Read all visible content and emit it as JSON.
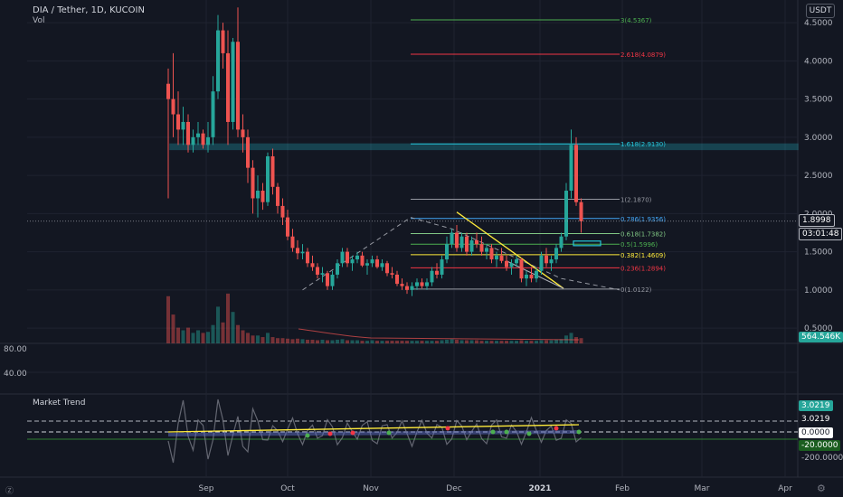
{
  "header": {
    "symbol_line": "DIA / Tether, 1D, KUCOIN",
    "volume_label": "Vol",
    "currency": "USDT"
  },
  "indicator": {
    "name": "Market Trend"
  },
  "price_axis": {
    "ticks": [
      "4.5000",
      "4.0000",
      "3.5000",
      "3.0000",
      "2.5000",
      "2.0000",
      "1.5000",
      "1.0000",
      "0.5000"
    ]
  },
  "osc_axis": {
    "ticks": [
      "80.00",
      "40.00"
    ]
  },
  "mt_axis": {
    "ticks": [
      "-200.0000"
    ]
  },
  "time_axis": {
    "ticks": [
      "Sep",
      "Oct",
      "Nov",
      "Dec",
      "2021",
      "Feb",
      "Mar",
      "Apr"
    ]
  },
  "tags": {
    "last_price": "1.8998",
    "countdown": "03:01:48",
    "volume": "564.546K",
    "mt_top": "3.0219",
    "mt_upper": "3.0219",
    "mt_zero": "0.0000",
    "mt_lower": "-20.0000"
  },
  "fib_levels": [
    {
      "label": "3(4.5367)",
      "price": 4.5367,
      "color": "#4caf50"
    },
    {
      "label": "2.618(4.0879)",
      "price": 4.0879,
      "color": "#f23645"
    },
    {
      "label": "1.618(2.9130)",
      "price": 2.913,
      "color": "#26c6da"
    },
    {
      "label": "1(2.1870)",
      "price": 2.187,
      "color": "#9598a1"
    },
    {
      "label": "0.786(1.9356)",
      "price": 1.9356,
      "color": "#42a5f5"
    },
    {
      "label": "0.618(1.7382)",
      "price": 1.7382,
      "color": "#81c784"
    },
    {
      "label": "0.5(1.5996)",
      "price": 1.5996,
      "color": "#4caf50"
    },
    {
      "label": "0.382(1.4609)",
      "price": 1.4609,
      "color": "#ffeb3b"
    },
    {
      "label": "0.236(1.2894)",
      "price": 1.2894,
      "color": "#f23645"
    },
    {
      "label": "0(1.0122)",
      "price": 1.0122,
      "color": "#9598a1"
    }
  ],
  "colors": {
    "up": "#26a69a",
    "down": "#ef5350",
    "background": "#131722",
    "grid": "#1f2330",
    "resistance": "#26c6da"
  },
  "icons": {
    "bottom_left": "z-icon",
    "bottom_right": "gear-icon"
  },
  "chart_data": {
    "type": "candlestick",
    "x_ticks": [
      "Sep",
      "Oct",
      "Nov",
      "Dec",
      "2021",
      "Feb",
      "Mar",
      "Apr"
    ],
    "ylim": [
      0.3,
      4.75
    ],
    "price_ticks": [
      4.5,
      4.0,
      3.5,
      3.0,
      2.5,
      2.0,
      1.5,
      1.0,
      0.5
    ],
    "resistance_zone": [
      2.84,
      2.91
    ],
    "last_price": 1.8998,
    "fib_levels": [
      4.5367,
      4.0879,
      2.913,
      2.187,
      1.9356,
      1.7382,
      1.5996,
      1.4609,
      1.2894,
      1.0122
    ],
    "x_range": [
      0,
      180
    ],
    "candles": [
      [
        0,
        3.7,
        3.9,
        2.2,
        3.5
      ],
      [
        1,
        3.5,
        4.1,
        3.0,
        3.3
      ],
      [
        2,
        3.3,
        3.6,
        2.9,
        3.1
      ],
      [
        3,
        3.1,
        3.4,
        2.9,
        3.2
      ],
      [
        4,
        3.2,
        3.3,
        2.8,
        2.9
      ],
      [
        5,
        2.9,
        3.1,
        2.8,
        3.0
      ],
      [
        6,
        3.0,
        3.2,
        2.9,
        3.05
      ],
      [
        7,
        3.05,
        3.1,
        2.85,
        2.9
      ],
      [
        8,
        2.9,
        3.2,
        2.8,
        3.0
      ],
      [
        9,
        3.0,
        3.8,
        2.9,
        3.6
      ],
      [
        10,
        3.6,
        4.6,
        3.5,
        4.4
      ],
      [
        11,
        4.4,
        4.5,
        3.9,
        4.1
      ],
      [
        12,
        4.1,
        4.4,
        2.9,
        3.2
      ],
      [
        13,
        3.2,
        4.3,
        3.1,
        4.25
      ],
      [
        14,
        4.25,
        4.7,
        3.0,
        3.1
      ],
      [
        15,
        3.1,
        3.3,
        2.8,
        3.0
      ],
      [
        16,
        3.0,
        3.1,
        2.4,
        2.6
      ],
      [
        17,
        2.6,
        2.7,
        2.0,
        2.2
      ],
      [
        18,
        2.2,
        2.5,
        1.95,
        2.3
      ],
      [
        19,
        2.3,
        2.4,
        2.05,
        2.15
      ],
      [
        20,
        2.15,
        2.8,
        2.1,
        2.75
      ],
      [
        21,
        2.75,
        2.85,
        2.25,
        2.35
      ],
      [
        22,
        2.35,
        2.4,
        2.0,
        2.1
      ],
      [
        23,
        2.1,
        2.2,
        1.85,
        1.95
      ],
      [
        24,
        1.95,
        2.05,
        1.65,
        1.7
      ],
      [
        25,
        1.7,
        1.8,
        1.5,
        1.55
      ],
      [
        26,
        1.55,
        1.65,
        1.4,
        1.48
      ],
      [
        27,
        1.48,
        1.6,
        1.4,
        1.5
      ],
      [
        28,
        1.5,
        1.55,
        1.3,
        1.35
      ],
      [
        29,
        1.35,
        1.45,
        1.25,
        1.3
      ],
      [
        30,
        1.3,
        1.35,
        1.15,
        1.2
      ],
      [
        31,
        1.2,
        1.3,
        1.1,
        1.22
      ],
      [
        32,
        1.22,
        1.25,
        1.0,
        1.05
      ],
      [
        33,
        1.05,
        1.25,
        1.0,
        1.2
      ],
      [
        34,
        1.2,
        1.4,
        1.15,
        1.35
      ],
      [
        35,
        1.35,
        1.55,
        1.3,
        1.5
      ],
      [
        36,
        1.5,
        1.55,
        1.3,
        1.35
      ],
      [
        37,
        1.35,
        1.45,
        1.25,
        1.4
      ],
      [
        38,
        1.4,
        1.5,
        1.35,
        1.45
      ],
      [
        39,
        1.45,
        1.5,
        1.3,
        1.32
      ],
      [
        40,
        1.32,
        1.4,
        1.2,
        1.35
      ],
      [
        41,
        1.35,
        1.45,
        1.3,
        1.4
      ],
      [
        42,
        1.4,
        1.45,
        1.28,
        1.3
      ],
      [
        43,
        1.3,
        1.4,
        1.25,
        1.35
      ],
      [
        44,
        1.35,
        1.38,
        1.18,
        1.22
      ],
      [
        45,
        1.22,
        1.3,
        1.15,
        1.2
      ],
      [
        46,
        1.2,
        1.25,
        1.05,
        1.08
      ],
      [
        47,
        1.08,
        1.15,
        1.0,
        1.05
      ],
      [
        48,
        1.05,
        1.1,
        0.95,
        1.0
      ],
      [
        49,
        1.0,
        1.1,
        0.92,
        1.05
      ],
      [
        50,
        1.05,
        1.15,
        1.0,
        1.1
      ],
      [
        51,
        1.1,
        1.15,
        1.02,
        1.05
      ],
      [
        52,
        1.05,
        1.15,
        1.0,
        1.1
      ],
      [
        53,
        1.1,
        1.3,
        1.05,
        1.25
      ],
      [
        54,
        1.25,
        1.35,
        1.15,
        1.2
      ],
      [
        55,
        1.2,
        1.45,
        1.15,
        1.4
      ],
      [
        56,
        1.4,
        1.7,
        1.35,
        1.6
      ],
      [
        57,
        1.6,
        1.8,
        1.55,
        1.75
      ],
      [
        58,
        1.75,
        1.85,
        1.5,
        1.55
      ],
      [
        59,
        1.55,
        1.75,
        1.5,
        1.7
      ],
      [
        60,
        1.7,
        1.75,
        1.45,
        1.5
      ],
      [
        61,
        1.5,
        1.7,
        1.45,
        1.65
      ],
      [
        62,
        1.65,
        1.75,
        1.55,
        1.6
      ],
      [
        63,
        1.6,
        1.7,
        1.45,
        1.5
      ],
      [
        64,
        1.5,
        1.6,
        1.4,
        1.55
      ],
      [
        65,
        1.55,
        1.6,
        1.35,
        1.4
      ],
      [
        66,
        1.4,
        1.5,
        1.3,
        1.45
      ],
      [
        67,
        1.45,
        1.55,
        1.35,
        1.38
      ],
      [
        68,
        1.38,
        1.45,
        1.25,
        1.3
      ],
      [
        69,
        1.3,
        1.4,
        1.2,
        1.35
      ],
      [
        70,
        1.35,
        1.45,
        1.3,
        1.4
      ],
      [
        71,
        1.4,
        1.42,
        1.1,
        1.15
      ],
      [
        72,
        1.15,
        1.25,
        1.05,
        1.2
      ],
      [
        73,
        1.2,
        1.3,
        1.1,
        1.15
      ],
      [
        74,
        1.15,
        1.3,
        1.1,
        1.25
      ],
      [
        75,
        1.25,
        1.5,
        1.2,
        1.45
      ],
      [
        76,
        1.45,
        1.55,
        1.3,
        1.35
      ],
      [
        77,
        1.35,
        1.45,
        1.25,
        1.4
      ],
      [
        78,
        1.4,
        1.6,
        1.35,
        1.55
      ],
      [
        79,
        1.55,
        1.75,
        1.5,
        1.7
      ],
      [
        80,
        1.7,
        2.4,
        1.65,
        2.3
      ],
      [
        81,
        2.3,
        3.1,
        2.2,
        2.9
      ],
      [
        82,
        2.9,
        3.0,
        2.1,
        2.15
      ],
      [
        83,
        2.15,
        2.2,
        1.75,
        1.9
      ]
    ],
    "volume_bars": [
      0.9,
      0.55,
      0.3,
      0.25,
      0.3,
      0.2,
      0.25,
      0.2,
      0.22,
      0.35,
      0.7,
      0.4,
      0.95,
      0.6,
      0.35,
      0.25,
      0.2,
      0.15,
      0.15,
      0.12,
      0.2,
      0.12,
      0.1,
      0.1,
      0.09,
      0.08,
      0.09,
      0.08,
      0.07,
      0.07,
      0.06,
      0.07,
      0.06,
      0.06,
      0.07,
      0.08,
      0.06,
      0.06,
      0.06,
      0.05,
      0.05,
      0.06,
      0.05,
      0.05,
      0.05,
      0.05,
      0.05,
      0.05,
      0.05,
      0.05,
      0.05,
      0.05,
      0.05,
      0.05,
      0.05,
      0.06,
      0.07,
      0.08,
      0.07,
      0.06,
      0.06,
      0.06,
      0.06,
      0.05,
      0.05,
      0.05,
      0.05,
      0.05,
      0.05,
      0.05,
      0.05,
      0.06,
      0.05,
      0.05,
      0.05,
      0.06,
      0.06,
      0.06,
      0.07,
      0.08,
      0.15,
      0.2,
      0.12,
      0.1
    ]
  }
}
